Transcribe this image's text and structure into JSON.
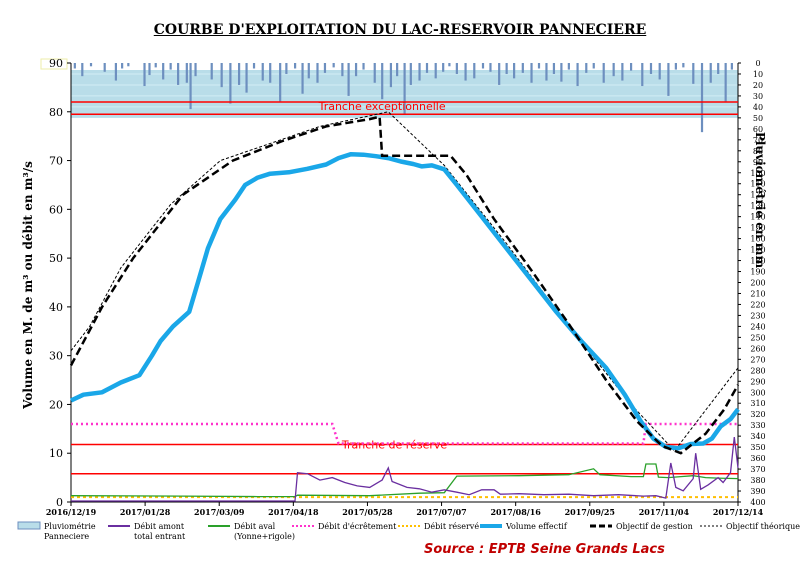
{
  "title": "COURBE D'EXPLOITATION DU LAC-RESERVOIR PANNECIERE",
  "source": "Source : EPTB Seine Grands Lacs",
  "chart_data": {
    "type": "line",
    "ylabel": "Volume en M. de m³ ou débit en m³/s",
    "y2label": "Pluviométrie en mm",
    "ylim": [
      0,
      90
    ],
    "y_ticks": [
      "0",
      "10",
      "20",
      "30",
      "40",
      "50",
      "60",
      "70",
      "80",
      "90"
    ],
    "y2lim": [
      0,
      400
    ],
    "y2_ticks": [
      "0",
      "10",
      "20",
      "30",
      "40",
      "50",
      "60",
      "70",
      "80",
      "90",
      "100",
      "110",
      "120",
      "130",
      "140",
      "150",
      "160",
      "170",
      "180",
      "190",
      "200",
      "210",
      "220",
      "230",
      "240",
      "250",
      "260",
      "270",
      "280",
      "290",
      "300",
      "310",
      "320",
      "330",
      "340",
      "350",
      "360",
      "370",
      "380",
      "390",
      "400"
    ],
    "x_ticks": [
      "2016/12/19",
      "2017/01/28",
      "2017/03/09",
      "2017/04/18",
      "2017/05/28",
      "2017/07/07",
      "2017/08/16",
      "2017/09/25",
      "2017/11/04",
      "2017/12/14"
    ],
    "annotations": {
      "exceptional": "Tranche exceptionnelle",
      "reserve": "Tranche de réserve"
    },
    "tranche_lines": [
      82,
      79.5,
      11.8,
      5.8
    ],
    "series": [
      {
        "name": "Pluviométrie\nPanneciere",
        "kind": "bars",
        "color": "#7f9fc8"
      },
      {
        "name": "Débit amont\ntotal entrant",
        "color": "#6a2fa0"
      },
      {
        "name": "Débit aval\n(Yonne+rigole)",
        "color": "#2aa02a"
      },
      {
        "name": "Débit d'écrêtement",
        "color": "#ff33cc",
        "dash": "dot"
      },
      {
        "name": "Débit réservé",
        "color": "#ffbf00",
        "dash": "dot"
      },
      {
        "name": "Volume effectif",
        "color": "#1aa7e8"
      },
      {
        "name": "Objectif de gestion",
        "color": "#000000",
        "dash": "dash"
      },
      {
        "name": "Objectif théorique",
        "color": "#000000",
        "dash": "fine"
      }
    ],
    "volume_effectif": [
      [
        0,
        20.8
      ],
      [
        10,
        22
      ],
      [
        25,
        22.5
      ],
      [
        40,
        24.5
      ],
      [
        55,
        26
      ],
      [
        65,
        30
      ],
      [
        72,
        33
      ],
      [
        82,
        36
      ],
      [
        95,
        39
      ],
      [
        102,
        45
      ],
      [
        110,
        52
      ],
      [
        120,
        58
      ],
      [
        132,
        62
      ],
      [
        140,
        65
      ],
      [
        150,
        66.5
      ],
      [
        160,
        67.3
      ],
      [
        175,
        67.6
      ],
      [
        190,
        68.3
      ],
      [
        205,
        69.2
      ],
      [
        215,
        70.5
      ],
      [
        225,
        71.3
      ],
      [
        235,
        71.2
      ],
      [
        245,
        70.9
      ],
      [
        255,
        70.5
      ],
      [
        265,
        69.8
      ],
      [
        275,
        69.3
      ],
      [
        282,
        68.8
      ],
      [
        290,
        69
      ],
      [
        300,
        68.2
      ],
      [
        310,
        65
      ],
      [
        330,
        58.5
      ],
      [
        350,
        52
      ],
      [
        370,
        45.5
      ],
      [
        390,
        39
      ],
      [
        410,
        33
      ],
      [
        430,
        27.5
      ],
      [
        445,
        22
      ],
      [
        458,
        16.5
      ],
      [
        468,
        13
      ],
      [
        478,
        11.3
      ],
      [
        488,
        11
      ],
      [
        498,
        11.9
      ],
      [
        508,
        12
      ],
      [
        515,
        13
      ],
      [
        522,
        15.5
      ],
      [
        530,
        17
      ],
      [
        536,
        19
      ]
    ],
    "objectif_gestion": [
      [
        0,
        28
      ],
      [
        25,
        40
      ],
      [
        50,
        50
      ],
      [
        90,
        63
      ],
      [
        130,
        70
      ],
      [
        170,
        74
      ],
      [
        205,
        77
      ],
      [
        240,
        78.5
      ],
      [
        248,
        79
      ],
      [
        250,
        71
      ],
      [
        305,
        71
      ],
      [
        318,
        67
      ],
      [
        340,
        58
      ],
      [
        370,
        47.5
      ],
      [
        400,
        36.5
      ],
      [
        430,
        25
      ],
      [
        455,
        16.5
      ],
      [
        475,
        11.5
      ],
      [
        490,
        10
      ],
      [
        510,
        14
      ],
      [
        525,
        19
      ],
      [
        536,
        24
      ]
    ],
    "objectif_theorique": [
      [
        0,
        31
      ],
      [
        15,
        36
      ],
      [
        40,
        48
      ],
      [
        80,
        61
      ],
      [
        120,
        70
      ],
      [
        200,
        77
      ],
      [
        255,
        80
      ],
      [
        300,
        69
      ],
      [
        350,
        53
      ],
      [
        400,
        36
      ],
      [
        450,
        20
      ],
      [
        485,
        10.5
      ],
      [
        536,
        27.5
      ]
    ],
    "debit_ecretement": [
      [
        0,
        16
      ],
      [
        210,
        16
      ],
      [
        215,
        12
      ],
      [
        460,
        12
      ],
      [
        462,
        16
      ],
      [
        536,
        16
      ]
    ],
    "debit_reserve": [
      [
        0,
        1
      ],
      [
        536,
        1
      ]
    ],
    "debit_amont": [
      [
        0,
        0.2
      ],
      [
        180,
        0.2
      ],
      [
        182,
        6
      ],
      [
        190,
        5.8
      ],
      [
        200,
        4.5
      ],
      [
        210,
        5
      ],
      [
        220,
        4
      ],
      [
        230,
        3.3
      ],
      [
        240,
        3
      ],
      [
        250,
        4.5
      ],
      [
        255,
        7
      ],
      [
        258,
        4.2
      ],
      [
        270,
        3
      ],
      [
        280,
        2.7
      ],
      [
        290,
        2
      ],
      [
        300,
        2.5
      ],
      [
        310,
        2
      ],
      [
        320,
        1.5
      ],
      [
        330,
        2.5
      ],
      [
        340,
        2.5
      ],
      [
        345,
        1.6
      ],
      [
        360,
        1.7
      ],
      [
        380,
        1.5
      ],
      [
        400,
        1.6
      ],
      [
        420,
        1.3
      ],
      [
        440,
        1.5
      ],
      [
        460,
        1.2
      ],
      [
        470,
        1.3
      ],
      [
        478,
        0.8
      ],
      [
        482,
        8
      ],
      [
        486,
        3
      ],
      [
        492,
        2.3
      ],
      [
        500,
        4.8
      ],
      [
        502,
        10
      ],
      [
        506,
        2.6
      ],
      [
        512,
        3.5
      ],
      [
        520,
        5
      ],
      [
        524,
        4
      ],
      [
        530,
        6
      ],
      [
        533,
        13.3
      ],
      [
        536,
        7
      ]
    ],
    "debit_aval": [
      [
        0,
        1.3
      ],
      [
        90,
        1.2
      ],
      [
        150,
        1.1
      ],
      [
        180,
        1.1
      ],
      [
        182,
        1.4
      ],
      [
        240,
        1.3
      ],
      [
        280,
        1.8
      ],
      [
        300,
        1.9
      ],
      [
        310,
        5.3
      ],
      [
        360,
        5.4
      ],
      [
        400,
        5.6
      ],
      [
        420,
        6.8
      ],
      [
        425,
        5.6
      ],
      [
        450,
        5.2
      ],
      [
        460,
        5.2
      ],
      [
        462,
        7.8
      ],
      [
        470,
        7.8
      ],
      [
        472,
        5.1
      ],
      [
        480,
        5
      ],
      [
        490,
        5.2
      ],
      [
        500,
        5.4
      ],
      [
        505,
        5.2
      ],
      [
        510,
        5
      ],
      [
        520,
        4.9
      ],
      [
        536,
        4.8
      ]
    ],
    "pluvio": [
      [
        3,
        5
      ],
      [
        9,
        12
      ],
      [
        16,
        3
      ],
      [
        27,
        8
      ],
      [
        36,
        16
      ],
      [
        41,
        5
      ],
      [
        46,
        3
      ],
      [
        59,
        21
      ],
      [
        63,
        11
      ],
      [
        68,
        4
      ],
      [
        74,
        15
      ],
      [
        80,
        6
      ],
      [
        86,
        20
      ],
      [
        93,
        18
      ],
      [
        96,
        42
      ],
      [
        100,
        12
      ],
      [
        113,
        15
      ],
      [
        121,
        22
      ],
      [
        128,
        37
      ],
      [
        135,
        20
      ],
      [
        141,
        27
      ],
      [
        147,
        5
      ],
      [
        154,
        16
      ],
      [
        160,
        18
      ],
      [
        168,
        35
      ],
      [
        173,
        10
      ],
      [
        180,
        5
      ],
      [
        186,
        28
      ],
      [
        191,
        14
      ],
      [
        198,
        18
      ],
      [
        204,
        9
      ],
      [
        211,
        4
      ],
      [
        218,
        12
      ],
      [
        223,
        30
      ],
      [
        229,
        12
      ],
      [
        235,
        6
      ],
      [
        244,
        18
      ],
      [
        250,
        33
      ],
      [
        257,
        22
      ],
      [
        262,
        12
      ],
      [
        268,
        46
      ],
      [
        273,
        20
      ],
      [
        280,
        16
      ],
      [
        286,
        9
      ],
      [
        293,
        14
      ],
      [
        299,
        8
      ],
      [
        304,
        3
      ],
      [
        310,
        10
      ],
      [
        317,
        16
      ],
      [
        324,
        14
      ],
      [
        331,
        5
      ],
      [
        337,
        8
      ],
      [
        344,
        20
      ],
      [
        350,
        10
      ],
      [
        356,
        14
      ],
      [
        363,
        9
      ],
      [
        370,
        18
      ],
      [
        376,
        5
      ],
      [
        382,
        16
      ],
      [
        388,
        10
      ],
      [
        394,
        17
      ],
      [
        400,
        6
      ],
      [
        407,
        21
      ],
      [
        414,
        9
      ],
      [
        420,
        5
      ],
      [
        428,
        18
      ],
      [
        436,
        12
      ],
      [
        443,
        16
      ],
      [
        450,
        7
      ],
      [
        459,
        21
      ],
      [
        466,
        10
      ],
      [
        473,
        15
      ],
      [
        480,
        30
      ],
      [
        486,
        6
      ],
      [
        492,
        4
      ],
      [
        500,
        19
      ],
      [
        507,
        63
      ],
      [
        514,
        18
      ],
      [
        520,
        10
      ],
      [
        526,
        36
      ],
      [
        531,
        6
      ]
    ]
  }
}
